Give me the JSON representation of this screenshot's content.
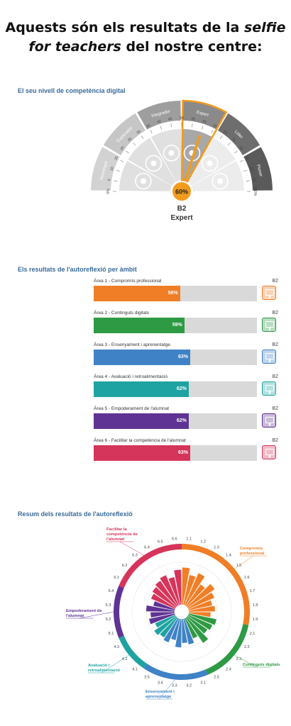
{
  "heading": {
    "line1": "Aquests són els resultats de la",
    "line1_italic": "selfie",
    "line2_italic": "for teachers",
    "line2": "del nostre centre:"
  },
  "gauge": {
    "title": "El seu nivell de competència digital",
    "segments": [
      {
        "label": "Nouvingut",
        "color": "#d2d2d2"
      },
      {
        "label": "Explorador",
        "color": "#c6c6c6"
      },
      {
        "label": "Integrador",
        "color": "#9e9e9e"
      },
      {
        "label": "Expert",
        "color": "#8a8a8a"
      },
      {
        "label": "Líder",
        "color": "#6e6e6e"
      },
      {
        "label": "Pioner",
        "color": "#5a5a5a"
      }
    ],
    "ticks": [
      "0%",
      "5",
      "10",
      "15",
      "20",
      "25",
      "30",
      "35",
      "40",
      "45",
      "50",
      "55",
      "60",
      "65",
      "70",
      "75",
      "80",
      "85",
      "90",
      "95",
      "100%"
    ],
    "value": 60,
    "value_label": "60%",
    "level": "B2",
    "level_name": "Expert",
    "highlight_color": "#f29b1d",
    "icons": [
      "brain-icon",
      "lightbulb-gear-icon",
      "plant-gear-icon",
      "certificate-icon",
      "people-icon",
      "pin-icon"
    ]
  },
  "areas": {
    "title": "Els resultats de l'autoreflexió per àmbit",
    "items": [
      {
        "label": "Àrea 1 - Compromís professional",
        "value": 56,
        "pct": "56%",
        "level": "B2",
        "color": "#f07e26"
      },
      {
        "label": "Àrea 2 - Continguts digitals",
        "value": 59,
        "pct": "59%",
        "level": "B2",
        "color": "#2e9a44"
      },
      {
        "label": "Àrea 3 - Ensenyament i aprenentatge",
        "value": 63,
        "pct": "63%",
        "level": "B2",
        "color": "#3f82c6"
      },
      {
        "label": "Àrea 4 - Avaluació i retroalimentació",
        "value": 62,
        "pct": "62%",
        "level": "B2",
        "color": "#1fa3a2"
      },
      {
        "label": "Àrea 5 - Empoderament de l'alumnat",
        "value": 62,
        "pct": "62%",
        "level": "B2",
        "color": "#5f3393"
      },
      {
        "label": "Àrea 6 - Facilitar la competència de l'alumnat",
        "value": 63,
        "pct": "63%",
        "level": "B2",
        "color": "#d6355b"
      }
    ]
  },
  "chart_data": {
    "type": "radial-bar",
    "title": "Resum dels resultats de l'autoreflexió",
    "groups": [
      {
        "name": "Compromís professional",
        "color": "#f07e26",
        "items": [
          {
            "label": "1.1",
            "value": 0.85
          },
          {
            "label": "1.2",
            "value": 0.7
          },
          {
            "label": "1.3",
            "value": 0.8
          },
          {
            "label": "1.4",
            "value": 0.6
          },
          {
            "label": "1.5",
            "value": 0.75
          },
          {
            "label": "1.6",
            "value": 0.65
          },
          {
            "label": "1.7",
            "value": 0.55
          },
          {
            "label": "1.8",
            "value": 0.6
          },
          {
            "label": "1.9",
            "value": 0.5
          }
        ]
      },
      {
        "name": "Continguts digitals",
        "color": "#2e9a44",
        "items": [
          {
            "label": "2.1",
            "value": 0.65
          },
          {
            "label": "2.2",
            "value": 0.6
          },
          {
            "label": "2.3",
            "value": 0.55
          },
          {
            "label": "2.4",
            "value": 0.7
          },
          {
            "label": "2.5",
            "value": 0.5
          }
        ]
      },
      {
        "name": "Ensenyament i aprenentatge",
        "color": "#3f82c6",
        "items": [
          {
            "label": "3.1",
            "value": 0.6
          },
          {
            "label": "3.2",
            "value": 0.55
          },
          {
            "label": "3.3",
            "value": 0.65
          },
          {
            "label": "3.4",
            "value": 0.5
          },
          {
            "label": "3.5",
            "value": 0.6
          }
        ]
      },
      {
        "name": "Avaluació i retroalimentació",
        "color": "#1fa3a2",
        "items": [
          {
            "label": "4.1",
            "value": 0.55
          },
          {
            "label": "4.2",
            "value": 0.6
          },
          {
            "label": "4.3",
            "value": 0.5
          }
        ]
      },
      {
        "name": "Empoderament de l'alumnat",
        "color": "#5f3393",
        "items": [
          {
            "label": "5.1",
            "value": 0.6
          },
          {
            "label": "5.2",
            "value": 0.55
          },
          {
            "label": "5.3",
            "value": 0.65
          },
          {
            "label": "5.4",
            "value": 0.5
          }
        ]
      },
      {
        "name": "Facilitar la competència de l'alumnat",
        "color": "#d6355b",
        "items": [
          {
            "label": "6.1",
            "value": 0.6
          },
          {
            "label": "6.2",
            "value": 0.65
          },
          {
            "label": "6.3",
            "value": 0.7
          },
          {
            "label": "6.4",
            "value": 0.75
          },
          {
            "label": "6.5",
            "value": 0.65
          },
          {
            "label": "6.6",
            "value": 0.8
          }
        ]
      }
    ],
    "legend_labels": [
      {
        "group": 0,
        "lines": [
          "Compromís",
          "professional"
        ]
      },
      {
        "group": 1,
        "lines": [
          "Continguts digitals"
        ]
      },
      {
        "group": 2,
        "lines": [
          "Ensenyament i",
          "aprenentatge"
        ]
      },
      {
        "group": 3,
        "lines": [
          "Avaluació i",
          "retroalimentació"
        ]
      },
      {
        "group": 4,
        "lines": [
          "Empoderament de",
          "l'alumnat"
        ]
      },
      {
        "group": 5,
        "lines": [
          "Facilitar la",
          "competència de",
          "l'alumnat"
        ]
      }
    ]
  }
}
